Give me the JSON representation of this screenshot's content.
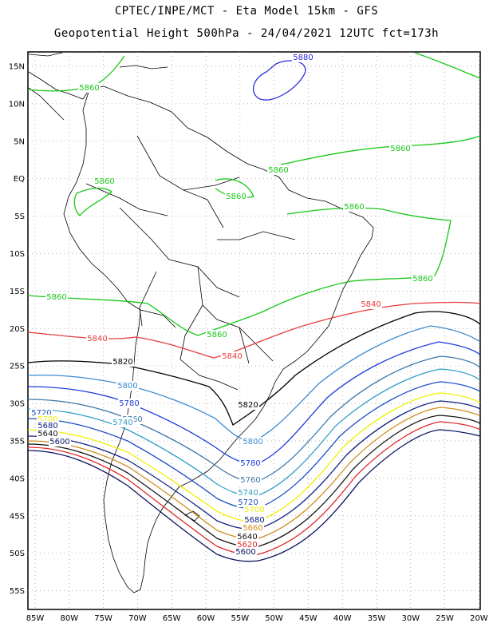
{
  "header": {
    "line1": "CPTEC/INPE/MCT -  Eta Model 15km - GFS",
    "line2": "Geopotential Height 500hPa - 24/04/2021 12UTC fct=173h"
  },
  "axes": {
    "lat_labels": [
      "15N",
      "10N",
      "5N",
      "EQ",
      "5S",
      "10S",
      "15S",
      "20S",
      "25S",
      "30S",
      "35S",
      "40S",
      "45S",
      "50S",
      "55S"
    ],
    "lon_labels": [
      "85W",
      "80W",
      "75W",
      "70W",
      "65W",
      "60W",
      "55W",
      "50W",
      "45W",
      "40W",
      "35W",
      "30W",
      "25W",
      "20W"
    ]
  },
  "contours": [
    {
      "value": "5880",
      "color": "#2a2ae0"
    },
    {
      "value": "5860",
      "color": "#19c819"
    },
    {
      "value": "5840",
      "color": "#e83c3c"
    },
    {
      "value": "5820",
      "color": "#000000"
    },
    {
      "value": "5800",
      "color": "#3c8cd2"
    },
    {
      "value": "5780",
      "color": "#1e3cdc"
    },
    {
      "value": "5760",
      "color": "#3c78aa"
    },
    {
      "value": "5740",
      "color": "#32a0c8"
    },
    {
      "value": "5720",
      "color": "#1e50c8"
    },
    {
      "value": "5700",
      "color": "#f0f000"
    },
    {
      "value": "5680",
      "color": "#102080"
    },
    {
      "value": "5660",
      "color": "#d28c1e"
    },
    {
      "value": "5640",
      "color": "#141414"
    },
    {
      "value": "5620",
      "color": "#e02828"
    },
    {
      "value": "5600",
      "color": "#0a1460"
    }
  ]
}
